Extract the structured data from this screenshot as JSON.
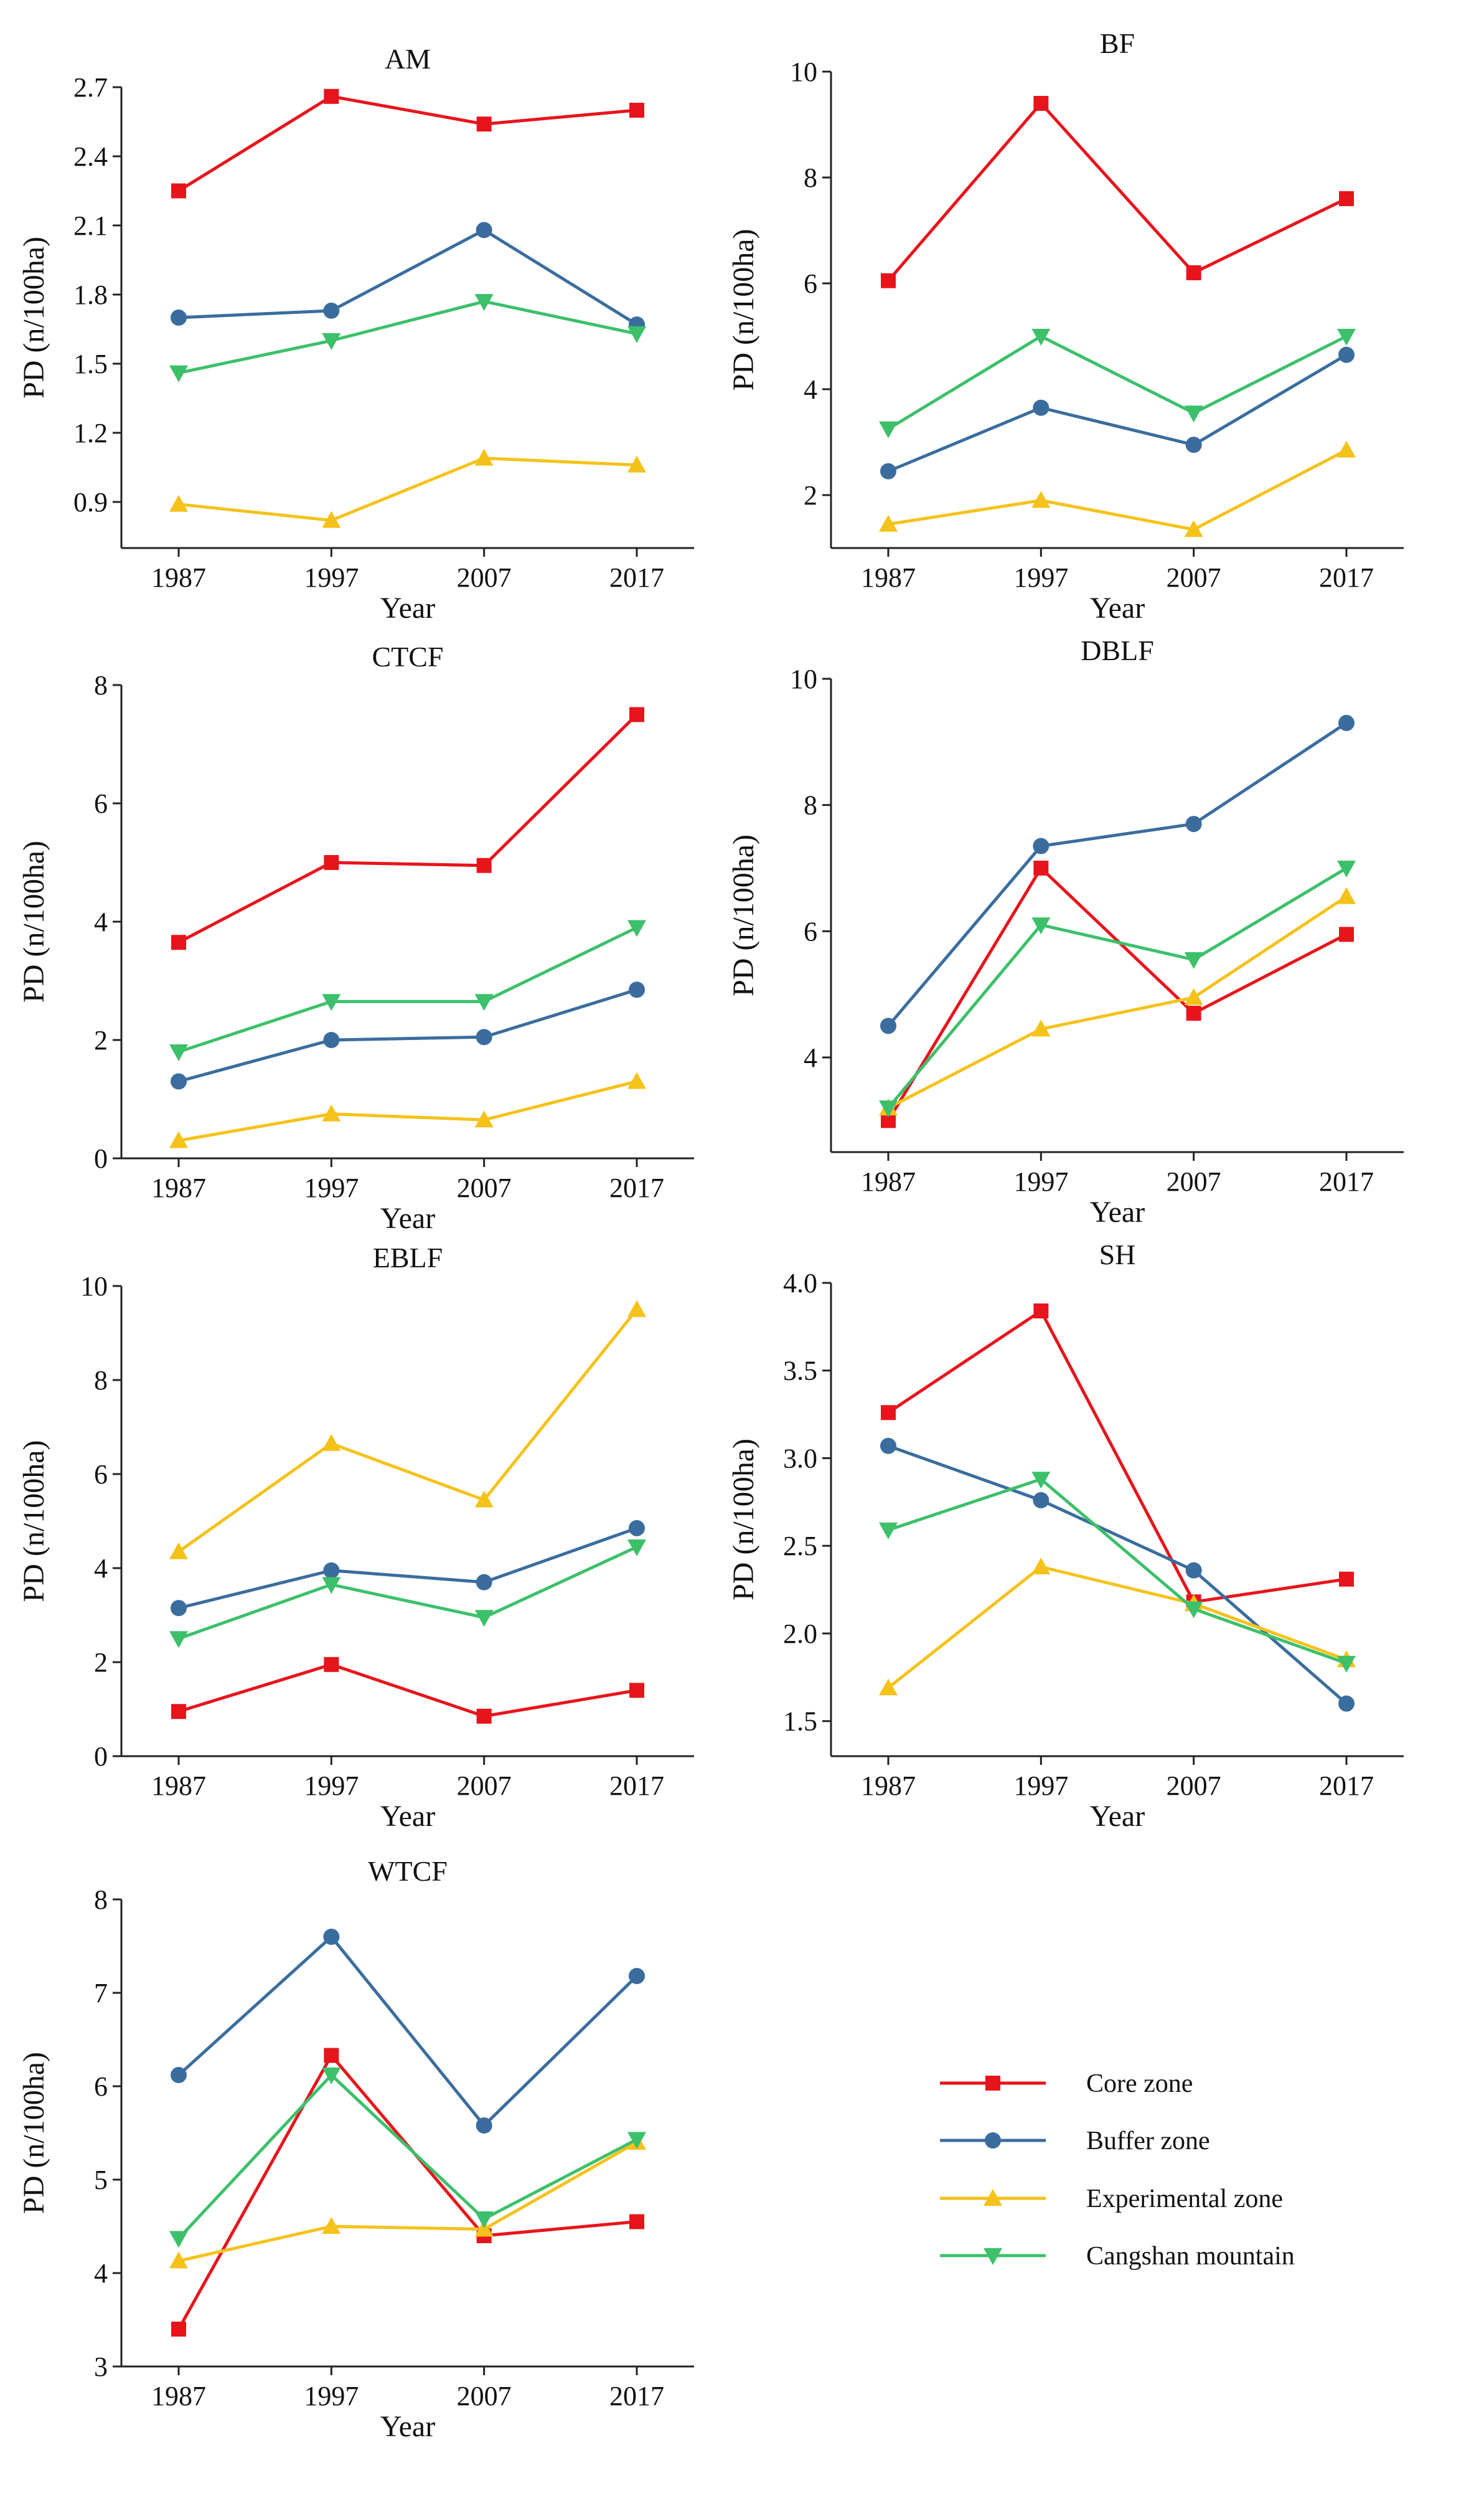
{
  "legend": [
    {
      "name": "Core zone",
      "color": "#e8141c",
      "marker": "square"
    },
    {
      "name": "Buffer zone",
      "color": "#3a6d9e",
      "marker": "circle"
    },
    {
      "name": "Experimental zone",
      "color": "#f5c21a",
      "marker": "triangle-up"
    },
    {
      "name": "Cangshan mountain",
      "color": "#3cc06a",
      "marker": "triangle-down"
    }
  ],
  "chart_data": [
    {
      "type": "line",
      "title": "AM",
      "xlabel": "Year",
      "ylabel": "PD (n/100ha)",
      "categories": [
        "1987",
        "1997",
        "2007",
        "2017"
      ],
      "ylim": [
        0.7,
        2.7
      ],
      "yticks": [
        "0.9",
        "1.2",
        "1.5",
        "1.8",
        "2.1",
        "2.4",
        "2.7"
      ],
      "series": [
        {
          "name": "Core zone",
          "values": [
            2.25,
            2.66,
            2.54,
            2.6
          ]
        },
        {
          "name": "Buffer zone",
          "values": [
            1.7,
            1.73,
            2.08,
            1.67
          ]
        },
        {
          "name": "Experimental zone",
          "values": [
            0.89,
            0.82,
            1.09,
            1.06
          ]
        },
        {
          "name": "Cangshan mountain",
          "values": [
            1.46,
            1.6,
            1.77,
            1.63
          ]
        }
      ]
    },
    {
      "type": "line",
      "title": "BF",
      "xlabel": "Year",
      "ylabel": "PD (n/100ha)",
      "categories": [
        "1987",
        "1997",
        "2007",
        "2017"
      ],
      "ylim": [
        1,
        10
      ],
      "yticks": [
        "2",
        "4",
        "6",
        "8",
        "10"
      ],
      "series": [
        {
          "name": "Core zone",
          "values": [
            6.05,
            9.4,
            6.2,
            7.6
          ]
        },
        {
          "name": "Buffer zone",
          "values": [
            2.45,
            3.65,
            2.95,
            4.65
          ]
        },
        {
          "name": "Experimental zone",
          "values": [
            1.45,
            1.9,
            1.35,
            2.85
          ]
        },
        {
          "name": "Cangshan mountain",
          "values": [
            3.25,
            5.0,
            3.55,
            5.0
          ]
        }
      ]
    },
    {
      "type": "line",
      "title": "CTCF",
      "xlabel": "Year",
      "ylabel": "PD (n/100ha)",
      "categories": [
        "1987",
        "1997",
        "2007",
        "2017"
      ],
      "ylim": [
        0,
        8
      ],
      "yticks": [
        "0",
        "2",
        "4",
        "6",
        "8"
      ],
      "series": [
        {
          "name": "Core zone",
          "values": [
            3.65,
            5.0,
            4.95,
            7.5
          ]
        },
        {
          "name": "Buffer zone",
          "values": [
            1.3,
            2.0,
            2.05,
            2.85
          ]
        },
        {
          "name": "Experimental zone",
          "values": [
            0.3,
            0.75,
            0.65,
            1.3
          ]
        },
        {
          "name": "Cangshan mountain",
          "values": [
            1.8,
            2.65,
            2.65,
            3.9
          ]
        }
      ]
    },
    {
      "type": "line",
      "title": "DBLF",
      "xlabel": "Year",
      "ylabel": "PD (n/100ha)",
      "categories": [
        "1987",
        "1997",
        "2007",
        "2017"
      ],
      "ylim": [
        2.5,
        10
      ],
      "yticks": [
        "4",
        "6",
        "8",
        "10"
      ],
      "series": [
        {
          "name": "Core zone",
          "values": [
            3.0,
            7.0,
            4.7,
            5.95
          ]
        },
        {
          "name": "Buffer zone",
          "values": [
            4.5,
            7.35,
            7.7,
            9.3
          ]
        },
        {
          "name": "Experimental zone",
          "values": [
            3.2,
            4.45,
            4.95,
            6.55
          ]
        },
        {
          "name": "Cangshan mountain",
          "values": [
            3.2,
            6.1,
            5.55,
            7.0
          ]
        }
      ]
    },
    {
      "type": "line",
      "title": "EBLF",
      "xlabel": "Year",
      "ylabel": "PD (n/100ha)",
      "categories": [
        "1987",
        "1997",
        "2007",
        "2017"
      ],
      "ylim": [
        0,
        10
      ],
      "yticks": [
        "0",
        "2",
        "4",
        "6",
        "8",
        "10"
      ],
      "series": [
        {
          "name": "Core zone",
          "values": [
            0.95,
            1.95,
            0.85,
            1.4
          ]
        },
        {
          "name": "Buffer zone",
          "values": [
            3.15,
            3.95,
            3.7,
            4.85
          ]
        },
        {
          "name": "Experimental zone",
          "values": [
            4.35,
            6.65,
            5.45,
            9.5
          ]
        },
        {
          "name": "Cangshan mountain",
          "values": [
            2.5,
            3.65,
            2.95,
            4.45
          ]
        }
      ]
    },
    {
      "type": "line",
      "title": "SH",
      "xlabel": "Year",
      "ylabel": "PD (n/100ha)",
      "categories": [
        "1987",
        "1997",
        "2007",
        "2017"
      ],
      "ylim": [
        1.3,
        4.0
      ],
      "yticks": [
        "1.5",
        "2.0",
        "2.5",
        "3.0",
        "3.5",
        "4.0"
      ],
      "series": [
        {
          "name": "Core zone",
          "values": [
            3.26,
            3.84,
            2.18,
            2.31
          ]
        },
        {
          "name": "Buffer zone",
          "values": [
            3.07,
            2.76,
            2.36,
            1.6
          ]
        },
        {
          "name": "Experimental zone",
          "values": [
            1.69,
            2.38,
            2.17,
            1.85
          ]
        },
        {
          "name": "Cangshan mountain",
          "values": [
            2.59,
            2.88,
            2.14,
            1.83
          ]
        }
      ]
    },
    {
      "type": "line",
      "title": "WTCF",
      "xlabel": "Year",
      "ylabel": "PD (n/100ha)",
      "categories": [
        "1987",
        "1997",
        "2007",
        "2017"
      ],
      "ylim": [
        3,
        8
      ],
      "yticks": [
        "3",
        "4",
        "5",
        "6",
        "7",
        "8"
      ],
      "series": [
        {
          "name": "Core zone",
          "values": [
            3.4,
            6.33,
            4.4,
            4.55
          ]
        },
        {
          "name": "Buffer zone",
          "values": [
            6.12,
            7.6,
            5.58,
            7.18
          ]
        },
        {
          "name": "Experimental zone",
          "values": [
            4.13,
            4.5,
            4.47,
            5.4
          ]
        },
        {
          "name": "Cangshan mountain",
          "values": [
            4.37,
            6.12,
            4.58,
            5.43
          ]
        }
      ]
    }
  ]
}
